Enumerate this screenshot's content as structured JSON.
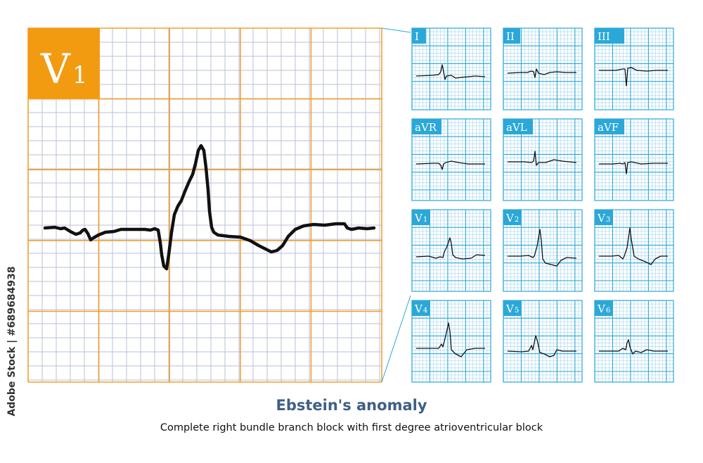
{
  "main_lead": {
    "label": "V",
    "sub": "1",
    "colors": {
      "grid_major": "#f0a030",
      "grid_minor": "#b8c2d8",
      "label_bg": "#f29b11",
      "trace": "#111111"
    }
  },
  "small_leads": [
    {
      "label": "I",
      "sub": ""
    },
    {
      "label": "II",
      "sub": ""
    },
    {
      "label": "III",
      "sub": ""
    },
    {
      "label": "aVR",
      "sub": ""
    },
    {
      "label": "aVL",
      "sub": ""
    },
    {
      "label": "aVF",
      "sub": ""
    },
    {
      "label": "V",
      "sub": "1"
    },
    {
      "label": "V",
      "sub": "2"
    },
    {
      "label": "V",
      "sub": "3"
    },
    {
      "label": "V",
      "sub": "4"
    },
    {
      "label": "V",
      "sub": "5"
    },
    {
      "label": "V",
      "sub": "6"
    }
  ],
  "small_colors": {
    "grid_major": "#2ba8d8",
    "grid_minor": "#9fd4ec",
    "label_bg": "#2ba8d8"
  },
  "title": "Ebstein's anomaly",
  "subtitle": "Complete right bundle branch block with first degree atrioventricular block",
  "watermark": "Adobe Stock | #689684938"
}
